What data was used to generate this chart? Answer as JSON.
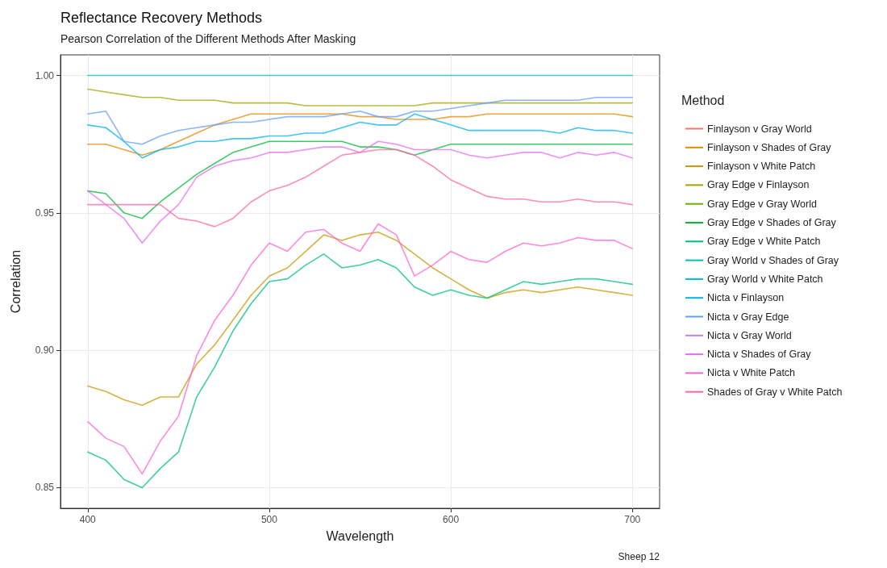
{
  "chart_data": {
    "type": "line",
    "title": "Reflectance Recovery Methods",
    "subtitle": "Pearson Correlation of the Different Methods After Masking",
    "xlabel": "Wavelength",
    "ylabel": "Correlation",
    "legend_title": "Method",
    "annotations": [
      "Sheep 12"
    ],
    "x": [
      400,
      410,
      420,
      430,
      440,
      450,
      460,
      470,
      480,
      490,
      500,
      510,
      520,
      530,
      540,
      550,
      560,
      570,
      580,
      590,
      600,
      610,
      620,
      630,
      640,
      650,
      660,
      670,
      680,
      690,
      700
    ],
    "xlim": [
      385,
      715
    ],
    "xticks": [
      400,
      500,
      600,
      700
    ],
    "ylim": [
      0.8425,
      1.0075
    ],
    "yticks": [
      {
        "value": 0.85,
        "label": "0.85"
      },
      {
        "value": 0.9,
        "label": "0.90"
      },
      {
        "value": 0.95,
        "label": "0.95"
      },
      {
        "value": 1,
        "label": "1.00"
      }
    ],
    "grid": true,
    "legend": "right",
    "marker": "none",
    "line_style": "solid",
    "series": [
      {
        "name": "Finlayson v Gray World",
        "color": "#f8766d",
        "values": [
          null,
          null,
          null,
          null,
          null,
          null,
          null,
          null,
          null,
          null,
          null,
          null,
          null,
          null,
          null,
          null,
          null,
          null,
          null,
          null,
          null,
          null,
          null,
          null,
          null,
          null,
          null,
          null,
          null,
          null,
          null
        ]
      },
      {
        "name": "Finlayson v Shades of Gray",
        "color": "#e58700",
        "values": [
          0.975,
          0.975,
          0.973,
          0.971,
          0.973,
          0.976,
          0.979,
          0.982,
          0.984,
          0.986,
          0.986,
          0.986,
          0.986,
          0.986,
          0.986,
          0.985,
          0.985,
          0.984,
          0.984,
          0.984,
          0.985,
          0.985,
          0.986,
          0.986,
          0.986,
          0.986,
          0.986,
          0.986,
          0.986,
          0.986,
          0.985
        ]
      },
      {
        "name": "Finlayson v White Patch",
        "color": "#c99800",
        "values": [
          0.887,
          0.885,
          0.882,
          0.88,
          0.883,
          0.883,
          0.895,
          0.902,
          0.911,
          0.92,
          0.927,
          0.93,
          0.936,
          0.942,
          0.94,
          0.942,
          0.943,
          0.94,
          0.935,
          0.93,
          0.926,
          0.922,
          0.919,
          0.921,
          0.922,
          0.921,
          0.922,
          0.923,
          0.922,
          0.921,
          0.92
        ]
      },
      {
        "name": "Gray Edge v Finlayson",
        "color": "#a3a500",
        "values": [
          0.995,
          0.994,
          0.993,
          0.992,
          0.992,
          0.991,
          0.991,
          0.991,
          0.99,
          0.99,
          0.99,
          0.99,
          0.989,
          0.989,
          0.989,
          0.989,
          0.989,
          0.989,
          0.989,
          0.99,
          0.99,
          0.99,
          0.99,
          0.99,
          0.99,
          0.99,
          0.99,
          0.99,
          0.99,
          0.99,
          0.99
        ]
      },
      {
        "name": "Gray Edge v Gray World",
        "color": "#6bb100",
        "values": [
          null,
          null,
          null,
          null,
          null,
          null,
          null,
          null,
          null,
          null,
          null,
          null,
          null,
          null,
          null,
          null,
          null,
          null,
          null,
          null,
          null,
          null,
          null,
          null,
          null,
          null,
          null,
          null,
          null,
          null,
          null
        ]
      },
      {
        "name": "Gray Edge v Shades of Gray",
        "color": "#00ba38",
        "values": [
          0.958,
          0.957,
          0.95,
          0.948,
          0.954,
          0.959,
          0.964,
          0.968,
          0.972,
          0.974,
          0.976,
          0.976,
          0.976,
          0.976,
          0.976,
          0.974,
          0.974,
          0.973,
          0.971,
          0.973,
          0.975,
          0.975,
          0.975,
          0.975,
          0.975,
          0.975,
          0.975,
          0.975,
          0.975,
          0.975,
          0.975
        ]
      },
      {
        "name": "Gray Edge v White Patch",
        "color": "#00bf7d",
        "values": [
          0.863,
          0.86,
          0.853,
          0.85,
          0.857,
          0.863,
          0.883,
          0.894,
          0.907,
          0.917,
          0.925,
          0.926,
          0.931,
          0.935,
          0.93,
          0.931,
          0.933,
          0.93,
          0.923,
          0.92,
          0.922,
          0.92,
          0.919,
          0.922,
          0.925,
          0.924,
          0.925,
          0.926,
          0.926,
          0.925,
          0.924
        ]
      },
      {
        "name": "Gray World v Shades of Gray",
        "color": "#00c0af",
        "values": [
          1,
          1,
          1,
          1,
          1,
          1,
          1,
          1,
          1,
          1,
          1,
          1,
          1,
          1,
          1,
          1,
          1,
          1,
          1,
          1,
          1,
          1,
          1,
          1,
          1,
          1,
          1,
          1,
          1,
          1,
          1
        ]
      },
      {
        "name": "Gray World v White Patch",
        "color": "#00bcd8",
        "values": [
          null,
          null,
          null,
          null,
          null,
          null,
          null,
          null,
          null,
          null,
          null,
          null,
          null,
          null,
          null,
          null,
          null,
          null,
          null,
          null,
          null,
          null,
          null,
          null,
          null,
          null,
          null,
          null,
          null,
          null,
          null
        ]
      },
      {
        "name": "Nicta v Finlayson",
        "color": "#00b0f6",
        "values": [
          0.982,
          0.981,
          0.976,
          0.97,
          0.973,
          0.974,
          0.976,
          0.976,
          0.977,
          0.977,
          0.978,
          0.978,
          0.979,
          0.979,
          0.981,
          0.983,
          0.982,
          0.982,
          0.986,
          0.984,
          0.982,
          0.98,
          0.98,
          0.98,
          0.98,
          0.98,
          0.979,
          0.981,
          0.98,
          0.98,
          0.979
        ]
      },
      {
        "name": "Nicta v Gray Edge",
        "color": "#619cff",
        "values": [
          0.986,
          0.987,
          0.976,
          0.975,
          0.978,
          0.98,
          0.981,
          0.982,
          0.983,
          0.983,
          0.984,
          0.985,
          0.985,
          0.985,
          0.986,
          0.987,
          0.985,
          0.985,
          0.987,
          0.987,
          0.988,
          0.989,
          0.99,
          0.991,
          0.991,
          0.991,
          0.991,
          0.991,
          0.992,
          0.992,
          0.992
        ]
      },
      {
        "name": "Nicta v Gray World",
        "color": "#b983ff",
        "values": [
          null,
          null,
          null,
          null,
          null,
          null,
          null,
          null,
          null,
          null,
          null,
          null,
          null,
          null,
          null,
          null,
          null,
          null,
          null,
          null,
          null,
          null,
          null,
          null,
          null,
          null,
          null,
          null,
          null,
          null,
          null
        ]
      },
      {
        "name": "Nicta v Shades of Gray",
        "color": "#e76bf3",
        "values": [
          0.958,
          0.953,
          0.948,
          0.939,
          0.947,
          0.953,
          0.963,
          0.967,
          0.969,
          0.97,
          0.972,
          0.972,
          0.973,
          0.974,
          0.974,
          0.972,
          0.976,
          0.975,
          0.973,
          0.973,
          0.973,
          0.971,
          0.97,
          0.971,
          0.972,
          0.972,
          0.97,
          0.972,
          0.971,
          0.972,
          0.97
        ]
      },
      {
        "name": "Nicta v White Patch",
        "color": "#fd61d1",
        "values": [
          0.874,
          0.868,
          0.865,
          0.855,
          0.867,
          0.876,
          0.898,
          0.911,
          0.92,
          0.931,
          0.939,
          0.936,
          0.943,
          0.944,
          0.939,
          0.936,
          0.946,
          0.942,
          0.927,
          0.931,
          0.936,
          0.933,
          0.932,
          0.936,
          0.939,
          0.938,
          0.939,
          0.941,
          0.94,
          0.94,
          0.937
        ]
      },
      {
        "name": "Shades of Gray v White Patch",
        "color": "#ff67a4",
        "values": [
          0.953,
          0.953,
          0.953,
          0.953,
          0.953,
          0.948,
          0.947,
          0.945,
          0.948,
          0.954,
          0.958,
          0.96,
          0.963,
          0.967,
          0.971,
          0.972,
          0.973,
          0.973,
          0.971,
          0.967,
          0.962,
          0.959,
          0.956,
          0.955,
          0.955,
          0.954,
          0.954,
          0.955,
          0.954,
          0.954,
          0.953
        ]
      }
    ]
  }
}
